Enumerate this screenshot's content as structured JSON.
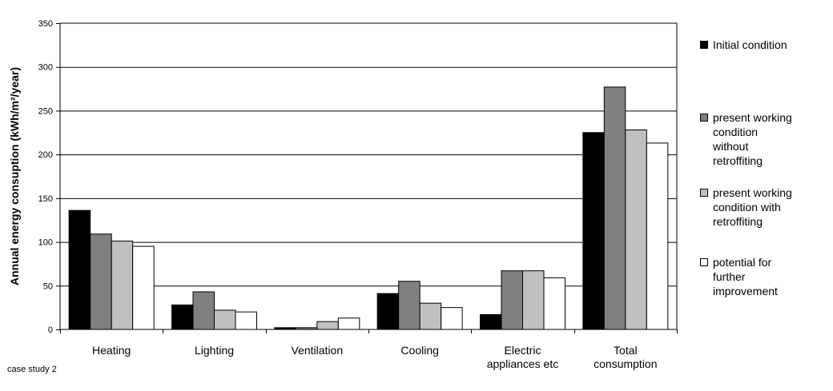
{
  "chart_data": {
    "type": "bar",
    "categories": [
      [
        "Heating"
      ],
      [
        "Lighting"
      ],
      [
        "Ventilation"
      ],
      [
        "Cooling"
      ],
      [
        "Electric",
        "appliances etc"
      ],
      [
        "Total",
        "consumption"
      ]
    ],
    "series": [
      {
        "name": [
          "Initial condition"
        ],
        "color": "#000000",
        "values": [
          136,
          28,
          2,
          41,
          17,
          225
        ]
      },
      {
        "name": [
          "present working",
          "condition",
          "without",
          "retroffiting"
        ],
        "color": "#808080",
        "values": [
          109,
          43,
          2,
          55,
          67,
          277
        ]
      },
      {
        "name": [
          "present working",
          "condition with",
          "retroffiting"
        ],
        "color": "#c0c0c0",
        "values": [
          101,
          22,
          9,
          30,
          67,
          228
        ]
      },
      {
        "name": [
          "potential for",
          "further",
          "improvement"
        ],
        "color": "#ffffff",
        "values": [
          95,
          20,
          13,
          25,
          59,
          213
        ]
      }
    ],
    "ylabel": "Annual energy consuption (kWh/m²/year)",
    "ylim": [
      0,
      350
    ],
    "yticks": [
      0,
      50,
      100,
      150,
      200,
      250,
      300,
      350
    ],
    "grid": true,
    "legend_position": "right"
  },
  "footnote": "case study 2"
}
